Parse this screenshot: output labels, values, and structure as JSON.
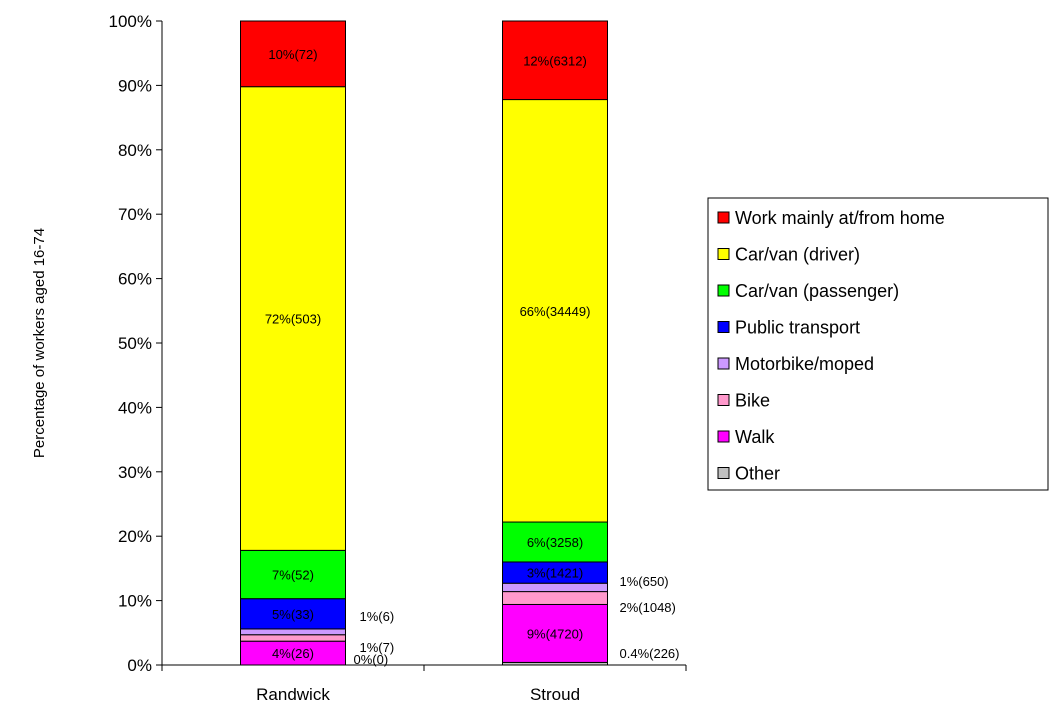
{
  "chart_data": {
    "type": "bar",
    "stacked": true,
    "percent": true,
    "ylabel": "Percentage of workers aged 16-74",
    "xlabel": "",
    "ylim": [
      0,
      100
    ],
    "yticks": [
      "0%",
      "10%",
      "20%",
      "30%",
      "40%",
      "50%",
      "60%",
      "70%",
      "80%",
      "90%",
      "100%"
    ],
    "categories": [
      "Randwick",
      "Stroud"
    ],
    "legend": {
      "position": "right"
    },
    "series": [
      {
        "name": "Other",
        "color": "#c0c0c0",
        "values": [
          0,
          0.4
        ]
      },
      {
        "name": "Walk",
        "color": "#ff00ff",
        "values": [
          3.7,
          9.0
        ]
      },
      {
        "name": "Bike",
        "color": "#ff99cc",
        "values": [
          1.0,
          2.0
        ]
      },
      {
        "name": "Motorbike/moped",
        "color": "#cc99ff",
        "values": [
          0.9,
          1.3
        ]
      },
      {
        "name": "Public transport",
        "color": "#0000ff",
        "values": [
          4.7,
          3.3
        ]
      },
      {
        "name": "Car/van (passenger)",
        "color": "#00ff00",
        "values": [
          7.5,
          6.2
        ]
      },
      {
        "name": "Car/van (driver)",
        "color": "#ffff00",
        "values": [
          72.0,
          65.6
        ]
      },
      {
        "name": "Work mainly at/from home",
        "color": "#ff0000",
        "values": [
          10.2,
          12.2
        ]
      }
    ],
    "labels": {
      "Randwick": {
        "Work mainly at/from home": "10%(72)",
        "Car/van (driver)": "72%(503)",
        "Car/van (passenger)": "7%(52)",
        "Public transport": "5%(33)",
        "Motorbike/moped": "1%(6)",
        "Bike": "1%(7)",
        "Walk": "4%(26)",
        "Other": "0%(0)"
      },
      "Stroud": {
        "Work mainly at/from home": "12%(6312)",
        "Car/van (driver)": "66%(34449)",
        "Car/van (passenger)": "6%(3258)",
        "Public transport": "3%(1421)",
        "Motorbike/moped": "1%(650)",
        "Bike": "2%(1048)",
        "Walk": "9%(4720)",
        "Other": "0.4%(226)"
      }
    }
  }
}
